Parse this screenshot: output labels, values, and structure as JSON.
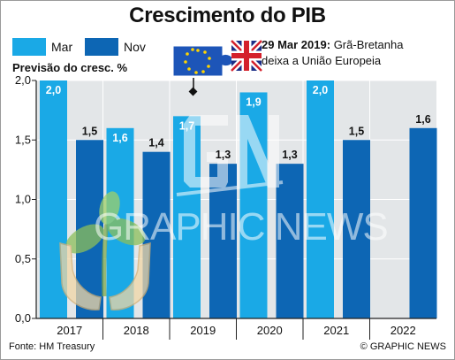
{
  "title": "Crescimento do PIB",
  "ylabel": "Previsão do cresc. %",
  "annotation": {
    "date": "29 Mar 2019:",
    "line1": "Grã-Bretanha",
    "line2": "deixa a União Europeia"
  },
  "source": "Fonte: HM Treasury",
  "credit": "© GRAPHIC NEWS",
  "watermark": "GRAPHIC NEWS",
  "colors": {
    "mar": "#1aa9e6",
    "nov": "#0d66b4",
    "plot_bg": "#e3e6e8",
    "axis": "#222222"
  },
  "icons": [
    "eu-flag-puzzle-icon",
    "uk-flag-puzzle-icon",
    "plant-hands-icon",
    "gn-logo-icon"
  ],
  "chart_data": {
    "type": "bar",
    "categories": [
      "2017",
      "2018",
      "2019",
      "2020",
      "2021",
      "2022"
    ],
    "series": [
      {
        "name": "Mar",
        "values": [
          2.0,
          1.6,
          1.7,
          1.9,
          2.0,
          null
        ]
      },
      {
        "name": "Nov",
        "values": [
          1.5,
          1.4,
          1.3,
          1.3,
          1.5,
          1.6
        ]
      }
    ],
    "value_labels": [
      [
        "2,0",
        "1,6",
        "1,7",
        "1,9",
        "2,0",
        null
      ],
      [
        "1,5",
        "1,4",
        "1,3",
        "1,3",
        "1,5",
        "1,6"
      ]
    ],
    "yticks": [
      0,
      0.5,
      1.0,
      1.5,
      2.0
    ],
    "ytick_labels": [
      "0,0",
      "0,5",
      "1,0",
      "1,5",
      "2,0"
    ],
    "ylim": [
      0,
      2.0
    ],
    "legend_position": "top-left",
    "grid": true
  }
}
